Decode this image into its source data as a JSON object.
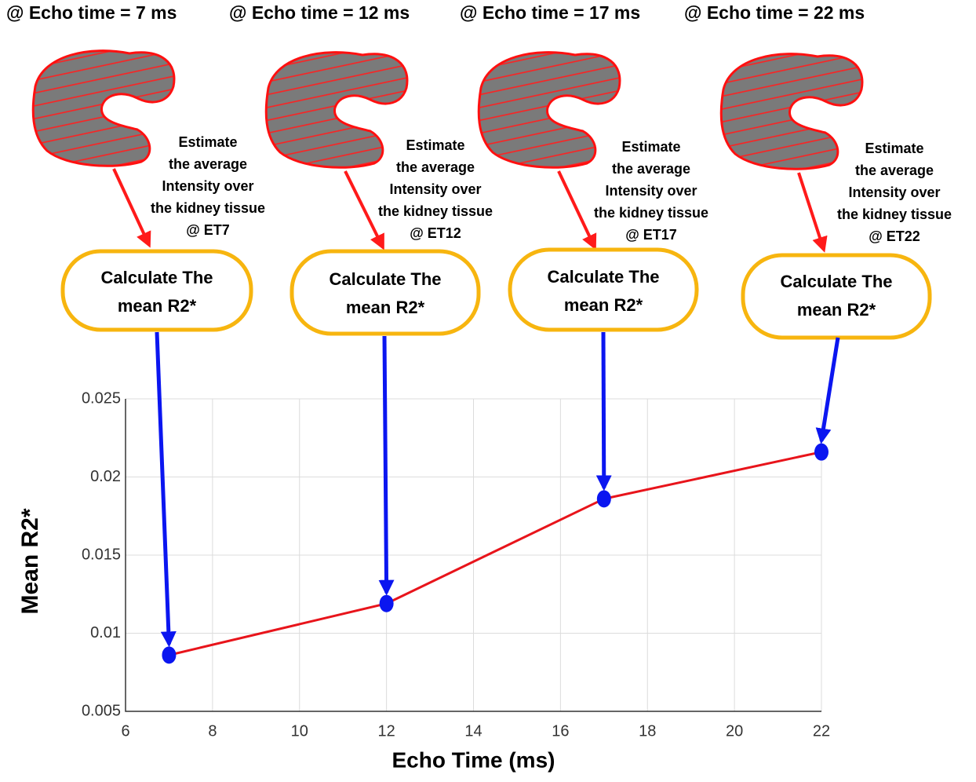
{
  "panels": [
    {
      "heading": "@ Echo time = 7 ms",
      "note": [
        "Estimate",
        "the average",
        "Intensity over",
        "the kidney tissue",
        "@ ET7"
      ],
      "box": [
        "Calculate The",
        "mean R2*"
      ]
    },
    {
      "heading": "@ Echo time = 12 ms",
      "note": [
        "Estimate",
        "the average",
        "Intensity over",
        "the kidney tissue",
        "@ ET12"
      ],
      "box": [
        "Calculate The",
        "mean R2*"
      ]
    },
    {
      "heading": "@ Echo time = 17 ms",
      "note": [
        "Estimate",
        "the average",
        "Intensity over",
        "the kidney tissue",
        "@ ET17"
      ],
      "box": [
        "Calculate The",
        "mean R2*"
      ]
    },
    {
      "heading": "@ Echo time = 22 ms",
      "note": [
        "Estimate",
        "the average",
        "Intensity over",
        "the kidney tissue",
        "@ ET22"
      ],
      "box": [
        "Calculate The",
        "mean R2*"
      ]
    }
  ],
  "chart_data": {
    "type": "line",
    "x_label": "Echo Time (ms)",
    "y_label": "Mean R2*",
    "x": [
      7,
      12,
      17,
      22
    ],
    "values": [
      0.0086,
      0.0119,
      0.0186,
      0.0216
    ],
    "color": "#e8141b",
    "marker_color": "#0b16f0",
    "xlim": [
      6,
      22
    ],
    "xticks": [
      6,
      8,
      10,
      12,
      14,
      16,
      18,
      20,
      22
    ],
    "ylim": [
      0.005,
      0.025
    ],
    "yticks": [
      0.005,
      0.01,
      0.015,
      0.02,
      0.025
    ],
    "grid": true
  }
}
